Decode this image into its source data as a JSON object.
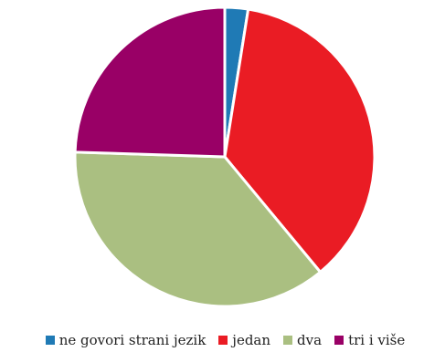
{
  "chart_data": {
    "type": "pie",
    "title": "",
    "categories": [
      "ne govori strani jezik",
      "jedan",
      "dva",
      "tri i više"
    ],
    "values": [
      2.5,
      36.5,
      36.5,
      24.5
    ],
    "colors": [
      "#1f7ab5",
      "#ea1c24",
      "#aabf81",
      "#990066"
    ],
    "legend_position": "bottom",
    "start_angle_deg": 0,
    "direction": "clockwise"
  }
}
